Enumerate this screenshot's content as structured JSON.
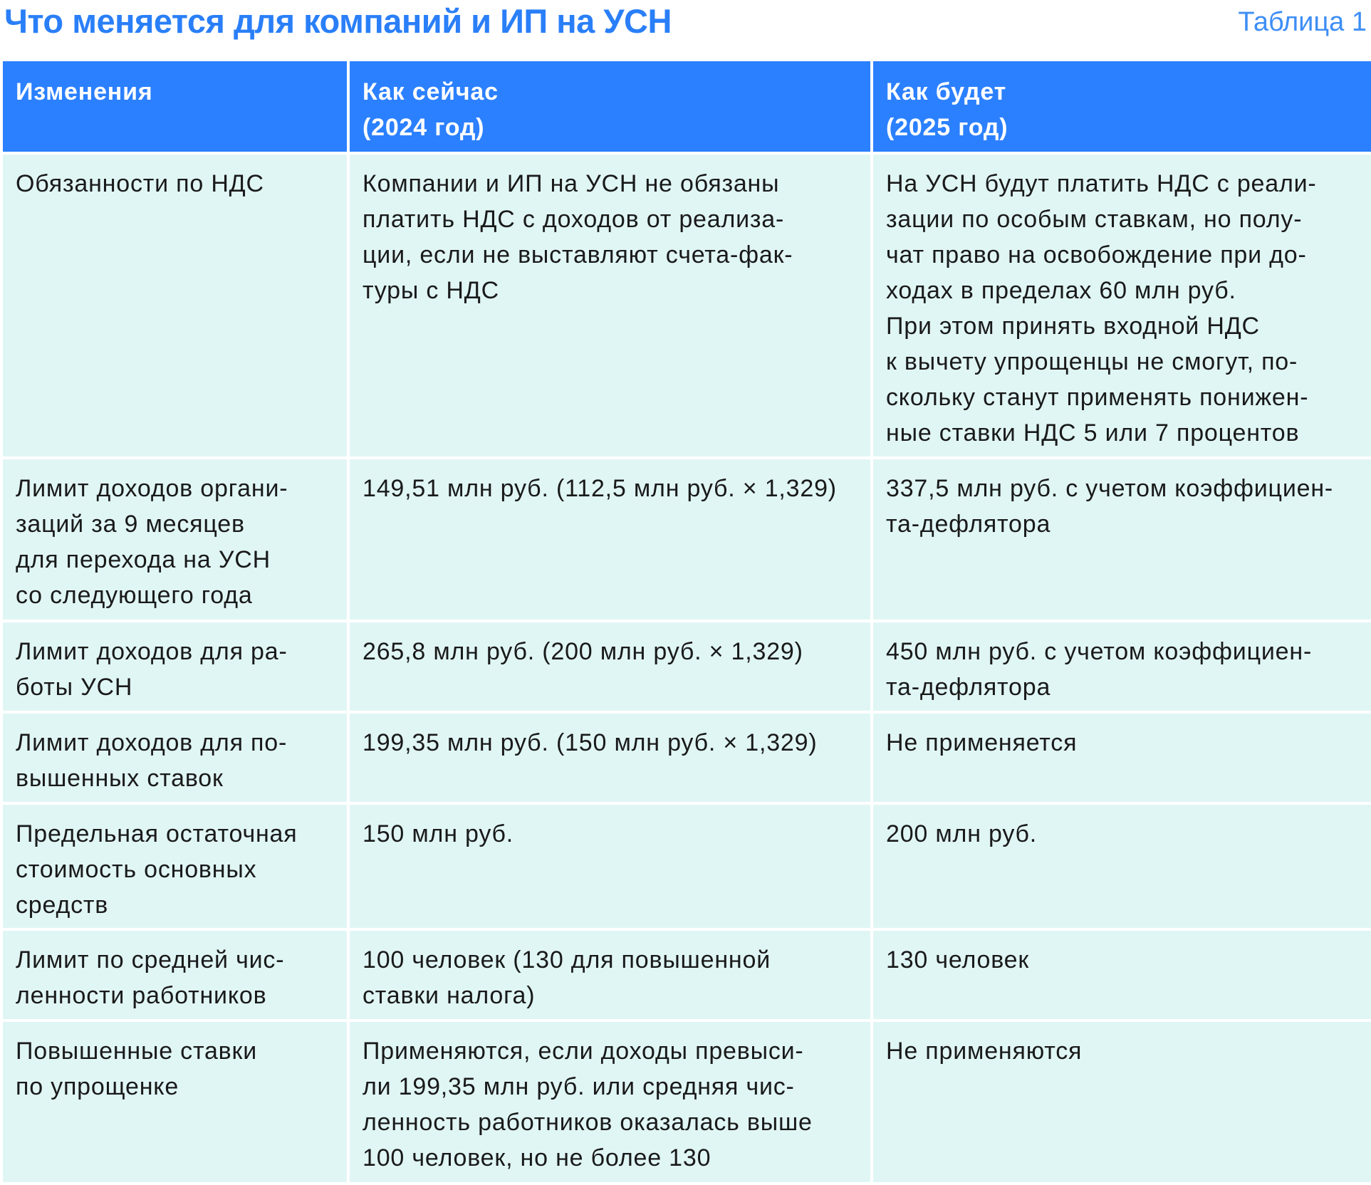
{
  "title": "Что меняется для компаний и ИП на УСН",
  "table_label": "Таблица 1",
  "headers": [
    "Изменения",
    "Как сейчас\n(2024 год)",
    "Как будет\n(2025 год)"
  ],
  "rows": [
    [
      "Обязанности по НДС",
      "Компании и ИП на УСН не обязаны\nплатить НДС с доходов от реализа-\nции, если не выставляют счета-фак-\nтуры с НДС",
      "На УСН будут платить НДС с реали-\nзации по особым ставкам, но полу-\nчат право на освобождение при до-\nходах в пределах 60 млн руб.\nПри этом принять входной НДС\nк вычету упрощенцы не смогут, по-\nскольку станут применять понижен-\nные ставки НДС 5 или 7 процентов"
    ],
    [
      "Лимит доходов органи-\nзаций за 9 месяцев\nдля перехода на УСН\nсо следующего года",
      "149,51 млн руб. (112,5 млн руб. × 1,329)",
      "337,5 млн руб. с учетом коэффициен-\nта-дефлятора"
    ],
    [
      "Лимит доходов для ра-\nботы УСН",
      "265,8 млн руб. (200 млн руб. × 1,329)",
      "450 млн руб. с учетом коэффициен-\nта-дефлятора"
    ],
    [
      "Лимит доходов для по-\nвышенных ставок",
      "199,35 млн руб. (150 млн руб. × 1,329)",
      "Не применяется"
    ],
    [
      "Предельная остаточная\nстоимость основных\nсредств",
      "150 млн руб.",
      "200 млн руб."
    ],
    [
      "Лимит по средней чис-\nленности работников",
      "100 человек (130 для повышенной\nставки налога)",
      "130 человек"
    ],
    [
      "Повышенные ставки\nпо упрощенке",
      "Применяются, если доходы превыси-\nли 199,35 млн руб. или средняя чис-\nленность работников оказалась выше\n100 человек, но не более 130",
      "Не применяются"
    ]
  ],
  "colors": {
    "accent": "#2b80ff",
    "cell_bg": "#e0f6f5"
  }
}
